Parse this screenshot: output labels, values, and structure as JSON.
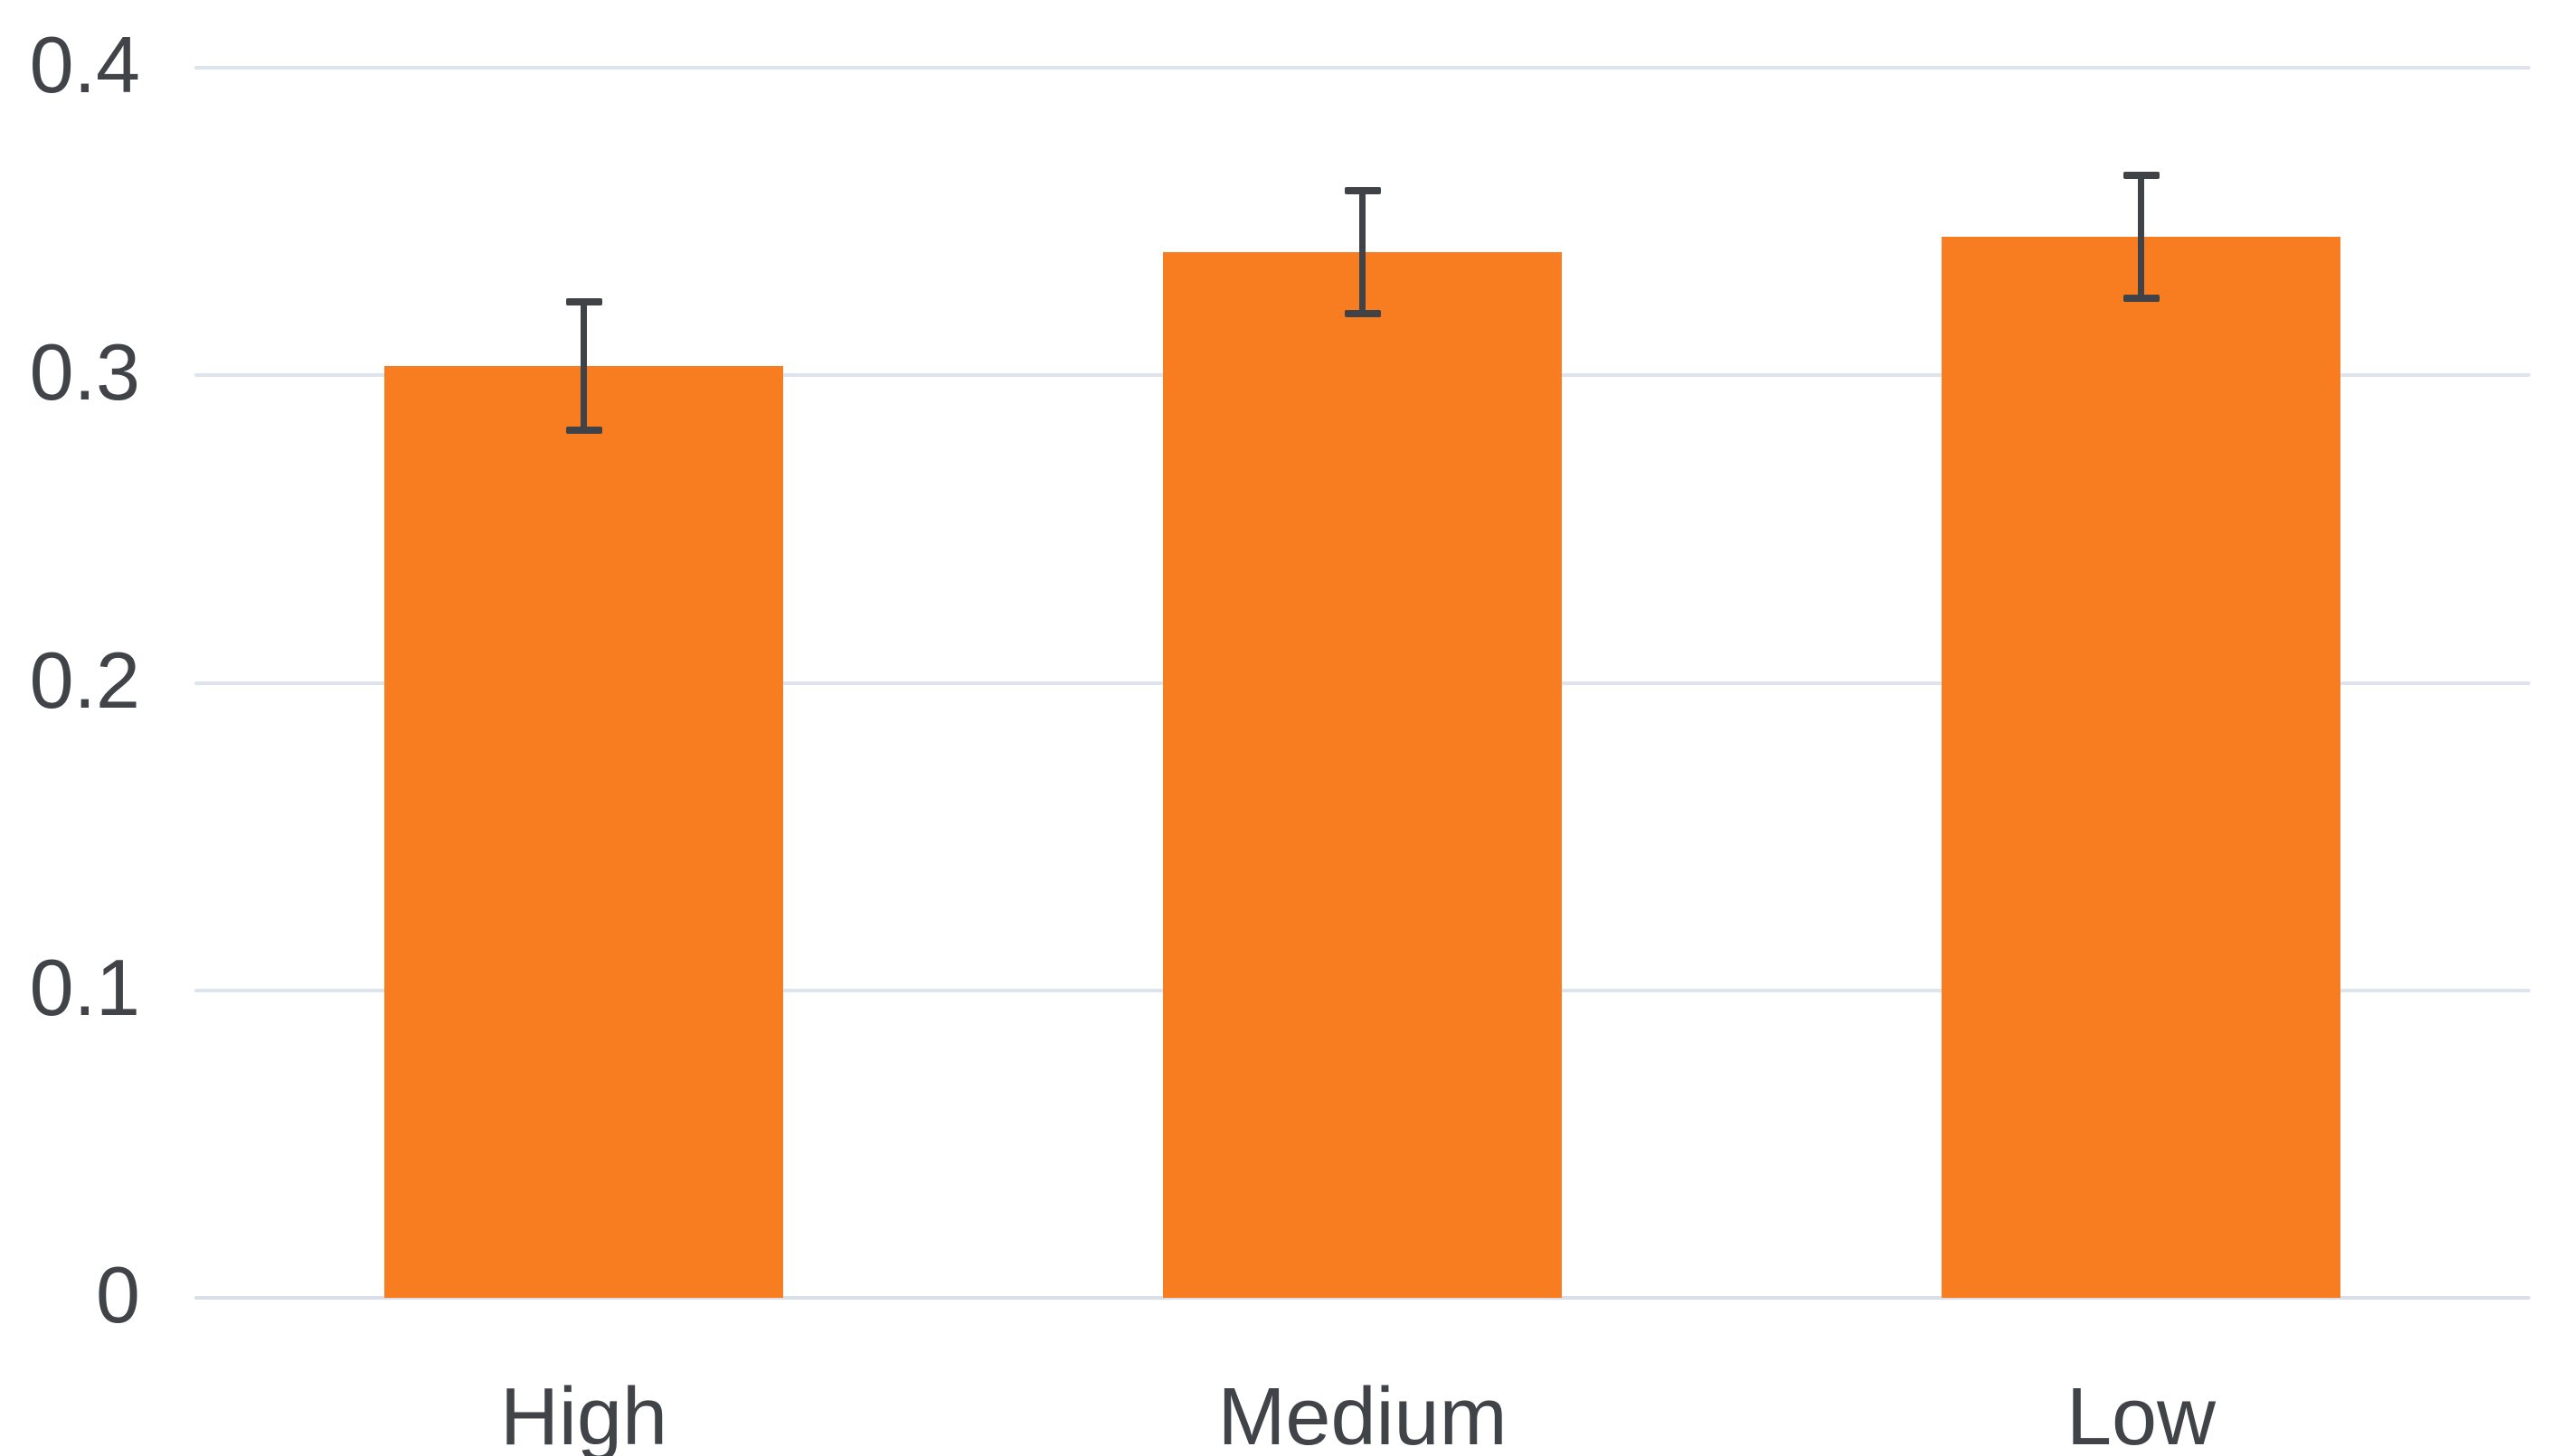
{
  "chart_data": {
    "type": "bar",
    "title": "",
    "xlabel": "",
    "ylabel": "",
    "categories": [
      "High",
      "Medium",
      "Low"
    ],
    "values": [
      0.303,
      0.34,
      0.345
    ],
    "error_upper": [
      0.324,
      0.36,
      0.365
    ],
    "error_lower": [
      0.282,
      0.32,
      0.325
    ],
    "ylim": [
      0,
      0.4
    ],
    "yticks": [
      0,
      0.1,
      0.2,
      0.3,
      0.4
    ],
    "ytick_labels": [
      "0",
      "0.1",
      "0.2",
      "0.3",
      "0.4"
    ],
    "grid": true,
    "legend": false,
    "colors": {
      "bar": "#F87D20",
      "error": "#3F4347",
      "gridline": "#DEE4EE",
      "axis_line": "#D9DFE8",
      "text": "#404347",
      "background": "#FFFFFF"
    }
  }
}
